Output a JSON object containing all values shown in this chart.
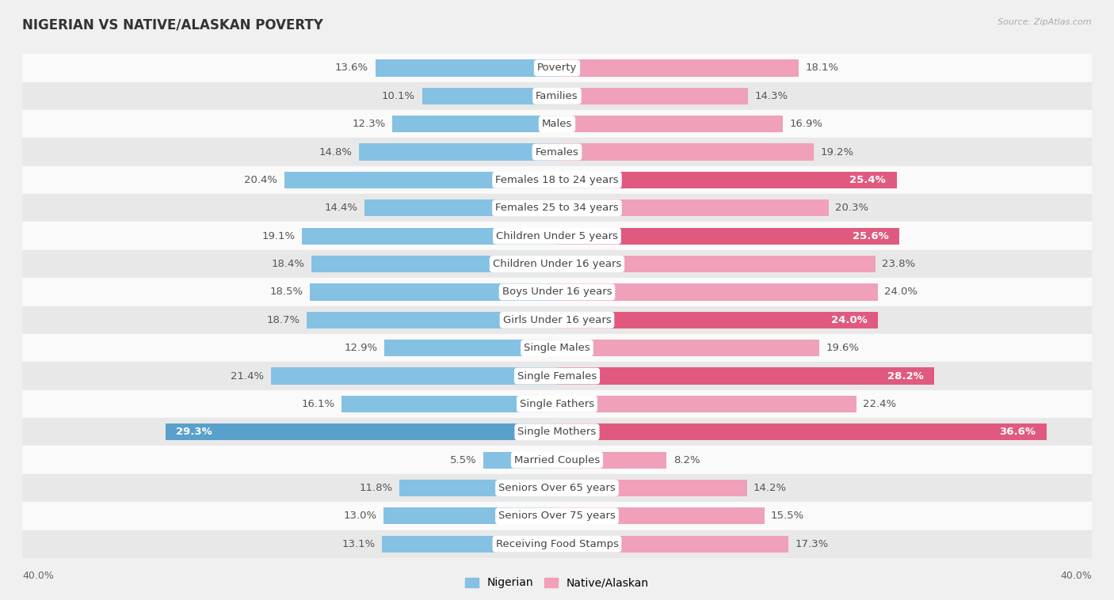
{
  "title": "NIGERIAN VS NATIVE/ALASKAN POVERTY",
  "source": "Source: ZipAtlas.com",
  "categories": [
    "Poverty",
    "Families",
    "Males",
    "Females",
    "Females 18 to 24 years",
    "Females 25 to 34 years",
    "Children Under 5 years",
    "Children Under 16 years",
    "Boys Under 16 years",
    "Girls Under 16 years",
    "Single Males",
    "Single Females",
    "Single Fathers",
    "Single Mothers",
    "Married Couples",
    "Seniors Over 65 years",
    "Seniors Over 75 years",
    "Receiving Food Stamps"
  ],
  "nigerian": [
    13.6,
    10.1,
    12.3,
    14.8,
    20.4,
    14.4,
    19.1,
    18.4,
    18.5,
    18.7,
    12.9,
    21.4,
    16.1,
    29.3,
    5.5,
    11.8,
    13.0,
    13.1
  ],
  "native_alaskan": [
    18.1,
    14.3,
    16.9,
    19.2,
    25.4,
    20.3,
    25.6,
    23.8,
    24.0,
    24.0,
    19.6,
    28.2,
    22.4,
    36.6,
    8.2,
    14.2,
    15.5,
    17.3
  ],
  "nigerian_color": "#85c1e3",
  "native_alaskan_color": "#f0a0b8",
  "nigerian_highlight_color": "#5aa0cc",
  "native_alaskan_highlight_color": "#e05a80",
  "background_color": "#f0f0f0",
  "row_color_light": "#fafafa",
  "row_color_dark": "#e8e8e8",
  "xlim": 40.0,
  "label_fontsize": 9.5,
  "title_fontsize": 12,
  "bar_height": 0.6,
  "nigerian_inside_labels": [
    13
  ],
  "native_inside_labels": [
    4,
    6,
    9,
    11,
    13
  ]
}
